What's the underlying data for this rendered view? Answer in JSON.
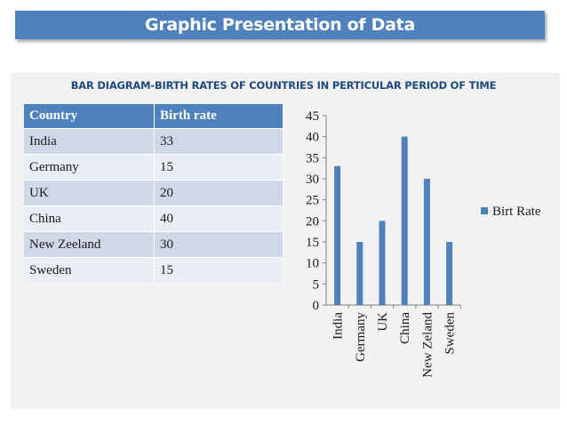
{
  "slide": {
    "title": "Graphic Presentation of Data"
  },
  "chart_heading": "BAR DIAGRAM-BIRTH RATES OF  COUNTRIES IN PERTICULAR PERIOD OF TIME",
  "table": {
    "headers": [
      "Country",
      "Birth rate"
    ],
    "rows": [
      [
        "India",
        "33"
      ],
      [
        "Germany",
        "15"
      ],
      [
        "UK",
        "20"
      ],
      [
        "China",
        "40"
      ],
      [
        "New Zeeland",
        "30"
      ],
      [
        "Sweden",
        "15"
      ]
    ]
  },
  "chart_data": {
    "type": "bar",
    "categories": [
      "India",
      "Germany",
      "UK",
      "China",
      "New Zeland",
      "Sweden"
    ],
    "series": [
      {
        "name": "Birt Rate",
        "values": [
          33,
          15,
          20,
          40,
          30,
          15
        ]
      }
    ],
    "ylim": [
      0,
      45
    ],
    "yticks": [
      0,
      5,
      10,
      15,
      20,
      25,
      30,
      35,
      40,
      45
    ],
    "grid": false,
    "legend": "right",
    "bar_color": "#4f81bd"
  },
  "colors": {
    "accent": "#4f81bd",
    "heading": "#1f497d"
  }
}
